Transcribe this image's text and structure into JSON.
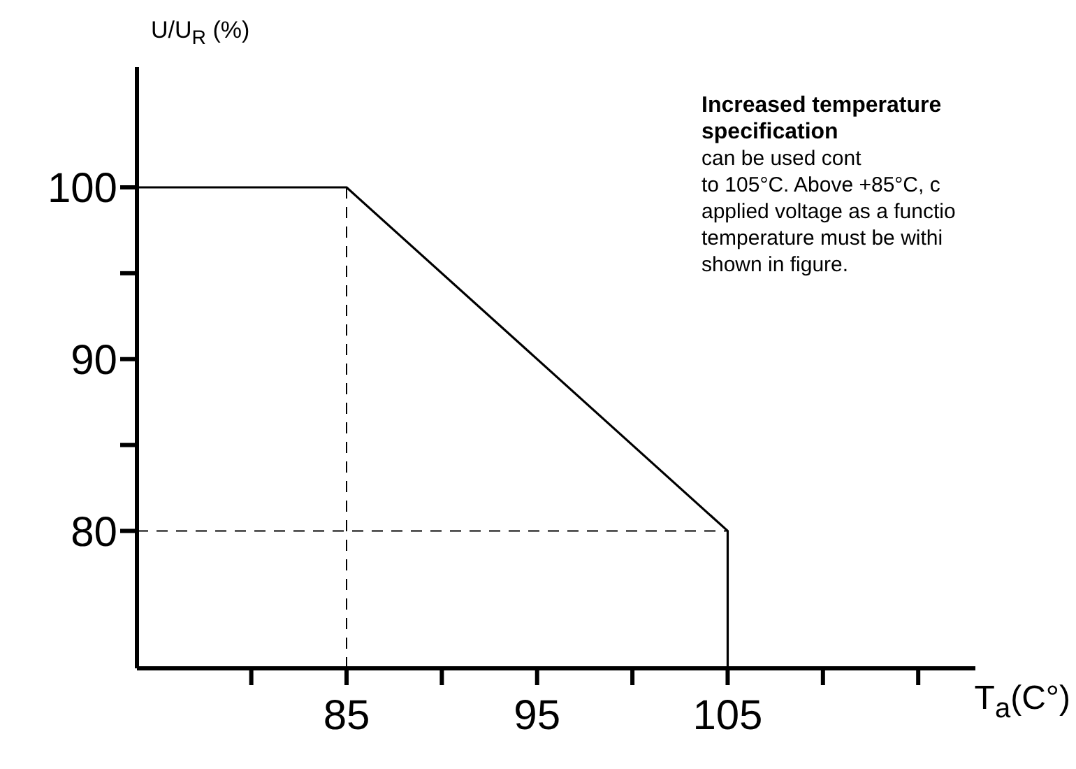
{
  "chart_data": {
    "type": "line",
    "title": "Increased temperature specification",
    "annotations": [
      "can be used cont",
      "to 105°C. Above +85°C, c",
      "applied voltage as a functio",
      "temperature must be withi",
      "shown in figure."
    ],
    "xlabel": "T$_{a}$(C°)",
    "ylabel": "U/U$_{R}$ (%)",
    "x": [
      74,
      85,
      105,
      105
    ],
    "series": [
      {
        "color": "#000000",
        "values": [
          100,
          100,
          80,
          72
        ]
      }
    ],
    "xlim": [
      74,
      118
    ],
    "ylim": [
      72,
      107
    ],
    "xticks": [
      {
        "value": 80,
        "label": null
      },
      85,
      {
        "value": 90,
        "label": null
      },
      95,
      {
        "value": 100,
        "label": null
      },
      105,
      {
        "value": 110,
        "label": null
      },
      {
        "value": 115,
        "label": null
      }
    ],
    "yticks": [
      80,
      {
        "value": 85,
        "label": null
      },
      90,
      {
        "value": 95,
        "label": null
      },
      100
    ],
    "ref_lines": [
      {
        "axis": "x",
        "value": 85,
        "line_style": "dashed",
        "color": "#000000"
      },
      {
        "axis": "y",
        "value": 80,
        "line_style": "dashed",
        "color": "#000000"
      }
    ],
    "grid": false,
    "legend": false,
    "marker": "none",
    "line_style": "solid"
  }
}
